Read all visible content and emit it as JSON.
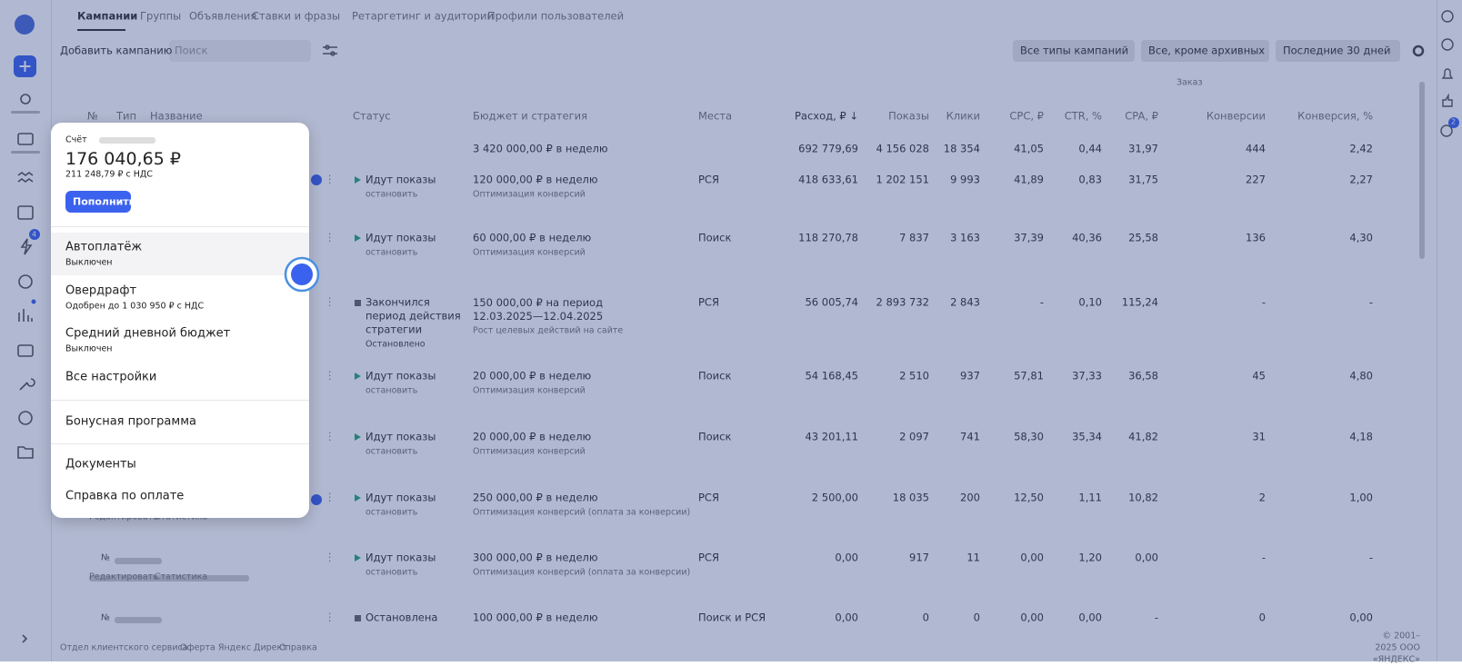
{
  "tabs": [
    "Кампании",
    "Группы",
    "Объявления",
    "Ставки и фразы",
    "Ретаргетинг и аудитории",
    "Профили пользователей"
  ],
  "toolbar": {
    "add_campaign": "Добавить кампанию",
    "search_placeholder": "Поиск",
    "filters": [
      "Все типы кампаний",
      "Все, кроме архивных",
      "Последние 30 дней"
    ]
  },
  "badges": {
    "sidebar": "4",
    "right": "2"
  },
  "table": {
    "group_header": "Заказ",
    "columns": {
      "num": "№",
      "type": "Тип",
      "name": "Название",
      "status": "Статус",
      "budget": "Бюджет и стратегия",
      "place": "Места",
      "spend": "Расход, ₽ ↓",
      "shows": "Показы",
      "clicks": "Клики",
      "cpc": "CPC, ₽",
      "ctr": "CTR, %",
      "cpa": "CPA, ₽",
      "conv": "Конверсии",
      "convr": "Конверсия, %"
    },
    "total": {
      "budget": "3 420 000,00 ₽ в неделю",
      "spend": "692 779,69",
      "shows": "4 156 028",
      "clicks": "18 354",
      "cpc": "41,05",
      "ctr": "0,44",
      "cpa": "31,97",
      "conv": "444",
      "convr": "2,42"
    },
    "rows": [
      {
        "status": "Идут показы",
        "action": "остановить",
        "budget": "120 000,00 ₽ в неделю",
        "strategy": "Оптимизация конверсий",
        "place": "РСЯ",
        "spend": "418 633,61",
        "shows": "1 202 151",
        "clicks": "9 993",
        "cpc": "41,89",
        "ctr": "0,83",
        "cpa": "31,75",
        "conv": "227",
        "convr": "2,27"
      },
      {
        "status": "Идут показы",
        "action": "остановить",
        "budget": "60 000,00 ₽ в неделю",
        "strategy": "Оптимизация конверсий",
        "place": "Поиск",
        "spend": "118 270,78",
        "shows": "7 837",
        "clicks": "3 163",
        "cpc": "37,39",
        "ctr": "40,36",
        "cpa": "25,58",
        "conv": "136",
        "convr": "4,30"
      },
      {
        "status": "Закончился\nпериод действия\nстратегии",
        "action": "Остановлено",
        "budget": "150 000,00 ₽ на период\n12.03.2025—12.04.2025",
        "strategy": "Рост целевых действий на сайте",
        "place": "РСЯ",
        "spend": "56 005,74",
        "shows": "2 893 732",
        "clicks": "2 843",
        "cpc": "-",
        "ctr": "0,10",
        "cpa": "115,24",
        "conv": "-",
        "convr": "-"
      },
      {
        "status": "Идут показы",
        "action": "остановить",
        "budget": "20 000,00 ₽ в неделю",
        "strategy": "Оптимизация конверсий",
        "place": "Поиск",
        "spend": "54 168,45",
        "shows": "2 510",
        "clicks": "937",
        "cpc": "57,81",
        "ctr": "37,33",
        "cpa": "36,58",
        "conv": "45",
        "convr": "4,80"
      },
      {
        "status": "Идут показы",
        "action": "остановить",
        "budget": "20 000,00 ₽ в неделю",
        "strategy": "Оптимизация конверсий",
        "place": "Поиск",
        "spend": "43 201,11",
        "shows": "2 097",
        "clicks": "741",
        "cpc": "58,30",
        "ctr": "35,34",
        "cpa": "41,82",
        "conv": "31",
        "convr": "4,18"
      },
      {
        "status": "Идут показы",
        "action": "остановить",
        "budget": "250 000,00 ₽ в неделю",
        "strategy": "Оптимизация конверсий (оплата за конверсии)",
        "place": "РСЯ",
        "spend": "2 500,00",
        "shows": "18 035",
        "clicks": "200",
        "cpc": "12,50",
        "ctr": "1,11",
        "cpa": "10,82",
        "conv": "2",
        "convr": "1,00"
      },
      {
        "status": "Идут показы",
        "action": "остановить",
        "budget": "300 000,00 ₽ в неделю",
        "strategy": "Оптимизация конверсий (оплата за конверсии)",
        "place": "РСЯ",
        "spend": "0,00",
        "shows": "917",
        "clicks": "11",
        "cpc": "0,00",
        "ctr": "1,20",
        "cpa": "0,00",
        "conv": "-",
        "convr": "-"
      },
      {
        "status": "Остановлена",
        "budget": "100 000,00 ₽ в неделю",
        "place": "Поиск и РСЯ",
        "spend": "0,00",
        "shows": "0",
        "clicks": "0",
        "cpc": "0,00",
        "ctr": "0,00",
        "cpa": "-",
        "conv": "0",
        "convr": "0,00"
      }
    ],
    "row_links": [
      "Редактировать",
      "Статистика"
    ]
  },
  "popup": {
    "account_label": "Счёт",
    "balance": "176 040,65 ₽",
    "balance_vat": "211 248,79 ₽ с НДС",
    "topup": "Пополнить",
    "items": [
      {
        "title": "Автоплатёж",
        "subtitle": "Выключен"
      },
      {
        "title": "Овердрафт",
        "subtitle": "Одобрен до 1 030 950 ₽ с НДС"
      },
      {
        "title": "Средний дневной бюджет",
        "subtitle": "Выключен"
      },
      {
        "title": "Все настройки"
      }
    ],
    "bonus": "Бонусная программа",
    "documents": "Документы",
    "help": "Справка по оплате"
  },
  "footer": {
    "links": [
      "Отдел клиентского сервиса",
      "Оферта Яндекс Директ",
      "Справка"
    ],
    "copyright": "© 2001–2025 ООО «ЯНДЕКС»"
  }
}
